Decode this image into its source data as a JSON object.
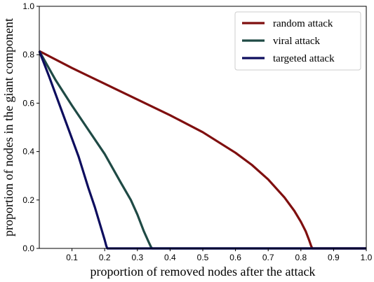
{
  "chart_data": {
    "type": "line",
    "xlabel": "proportion of removed nodes after the attack",
    "ylabel": "proportion of nodes in the giant component",
    "xlim": [
      0,
      1
    ],
    "ylim": [
      0,
      1
    ],
    "x_ticks": [
      0.1,
      0.2,
      0.3,
      0.4,
      0.5,
      0.6,
      0.7,
      0.8,
      0.9,
      1.0
    ],
    "x_tick_labels": [
      "0.1",
      "0.2",
      "0.3",
      "0.4",
      "0.5",
      "0.6",
      "0.7",
      "0.8",
      "0.9",
      "1.0"
    ],
    "y_ticks": [
      0.0,
      0.2,
      0.4,
      0.6,
      0.8,
      1.0
    ],
    "y_tick_labels": [
      "0.0",
      "0.2",
      "0.4",
      "0.6",
      "0.8",
      "1.0"
    ],
    "grid": false,
    "legend_position": "top-right",
    "series": [
      {
        "name": "random attack",
        "color": "#7f0f0f",
        "x": [
          0.0,
          0.1,
          0.2,
          0.3,
          0.4,
          0.5,
          0.6,
          0.65,
          0.7,
          0.75,
          0.78,
          0.8,
          0.815,
          0.825,
          0.832,
          0.835,
          1.0
        ],
        "y": [
          0.815,
          0.745,
          0.68,
          0.615,
          0.55,
          0.48,
          0.395,
          0.345,
          0.285,
          0.21,
          0.155,
          0.11,
          0.07,
          0.035,
          0.008,
          0.0,
          0.0
        ]
      },
      {
        "name": "viral attack",
        "color": "#1f4a45",
        "x": [
          0.0,
          0.05,
          0.1,
          0.15,
          0.2,
          0.25,
          0.28,
          0.3,
          0.32,
          0.335,
          0.342,
          0.345,
          1.0
        ],
        "y": [
          0.815,
          0.695,
          0.59,
          0.49,
          0.39,
          0.27,
          0.2,
          0.14,
          0.07,
          0.025,
          0.005,
          0.0,
          0.0
        ]
      },
      {
        "name": "targeted attack",
        "color": "#0d0d5e",
        "x": [
          0.0,
          0.03,
          0.06,
          0.09,
          0.12,
          0.15,
          0.17,
          0.19,
          0.2,
          0.205,
          0.208,
          1.0
        ],
        "y": [
          0.815,
          0.71,
          0.6,
          0.49,
          0.38,
          0.25,
          0.17,
          0.08,
          0.035,
          0.01,
          0.0,
          0.0
        ]
      }
    ]
  }
}
